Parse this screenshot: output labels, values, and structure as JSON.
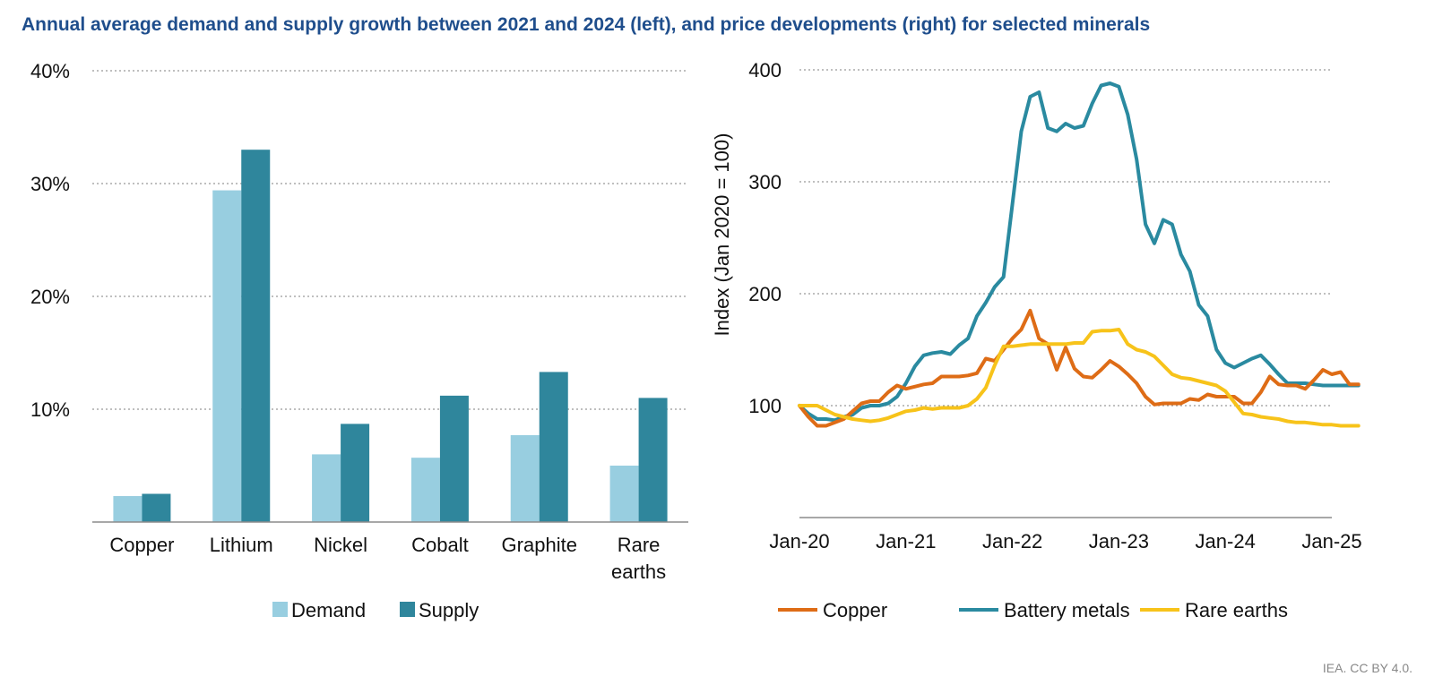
{
  "title": "Annual average demand and supply growth between 2021 and 2024 (left), and price developments (right) for selected minerals",
  "credit": "IEA. CC BY 4.0.",
  "colors": {
    "demand": "#98cee0",
    "supply": "#2f869c",
    "copper": "#de6c16",
    "battery_metals": "#2a8aa0",
    "rare_earths": "#f7c31a",
    "grid": "#999999",
    "axis": "#8c8c8c"
  },
  "chart_data": [
    {
      "type": "bar",
      "categories": [
        "Copper",
        "Lithium",
        "Nickel",
        "Cobalt",
        "Graphite",
        "Rare earths"
      ],
      "series": [
        {
          "name": "Demand",
          "values": [
            2.3,
            29.4,
            6.0,
            5.7,
            7.7,
            5.0
          ]
        },
        {
          "name": "Supply",
          "values": [
            2.5,
            33.0,
            8.7,
            11.2,
            13.3,
            11.0
          ]
        }
      ],
      "yticks": [
        "10%",
        "20%",
        "30%",
        "40%"
      ],
      "ylim": [
        0,
        40
      ],
      "grid": true,
      "legend": "bottom"
    },
    {
      "type": "line",
      "ylabel": "Index (Jan 2020 = 100)",
      "xticks": [
        "Jan-20",
        "Jan-21",
        "Jan-22",
        "Jan-23",
        "Jan-24",
        "Jan-25"
      ],
      "yticks": [
        "100",
        "200",
        "300",
        "400"
      ],
      "ylim": [
        0,
        400
      ],
      "x_start": "2020-01",
      "grid": true,
      "legend": "bottom",
      "series": [
        {
          "name": "Copper",
          "color_key": "copper",
          "values": [
            100,
            90,
            82,
            82,
            85,
            88,
            95,
            102,
            104,
            104,
            112,
            118,
            115,
            117,
            119,
            120,
            126,
            126,
            126,
            127,
            129,
            142,
            140,
            150,
            160,
            168,
            185,
            160,
            155,
            132,
            152,
            133,
            126,
            125,
            132,
            140,
            135,
            128,
            120,
            108,
            101,
            102,
            102,
            102,
            106,
            105,
            110,
            108,
            108,
            108,
            102,
            102,
            112,
            126,
            119,
            118,
            118,
            115,
            123,
            132,
            128,
            130,
            119,
            119
          ]
        },
        {
          "name": "Battery metals",
          "color_key": "battery_metals",
          "values": [
            100,
            93,
            88,
            88,
            87,
            90,
            92,
            98,
            100,
            100,
            102,
            108,
            120,
            135,
            145,
            147,
            148,
            146,
            154,
            160,
            180,
            192,
            206,
            215,
            280,
            345,
            376,
            380,
            348,
            345,
            352,
            348,
            350,
            370,
            386,
            388,
            385,
            360,
            320,
            262,
            245,
            266,
            262,
            235,
            220,
            190,
            180,
            150,
            138,
            134,
            138,
            142,
            145,
            137,
            128,
            120,
            120,
            120,
            119,
            118,
            118,
            118,
            118,
            118
          ]
        },
        {
          "name": "Rare earths",
          "color_key": "rare_earths",
          "values": [
            100,
            100,
            100,
            96,
            92,
            90,
            88,
            87,
            86,
            87,
            89,
            92,
            95,
            96,
            98,
            97,
            98,
            98,
            98,
            100,
            106,
            116,
            136,
            153,
            153,
            154,
            155,
            155,
            155,
            155,
            155,
            156,
            156,
            166,
            167,
            167,
            168,
            155,
            150,
            148,
            144,
            136,
            128,
            125,
            124,
            122,
            120,
            118,
            113,
            103,
            93,
            92,
            90,
            89,
            88,
            86,
            85,
            85,
            84,
            83,
            83,
            82,
            82,
            82
          ]
        }
      ]
    }
  ]
}
